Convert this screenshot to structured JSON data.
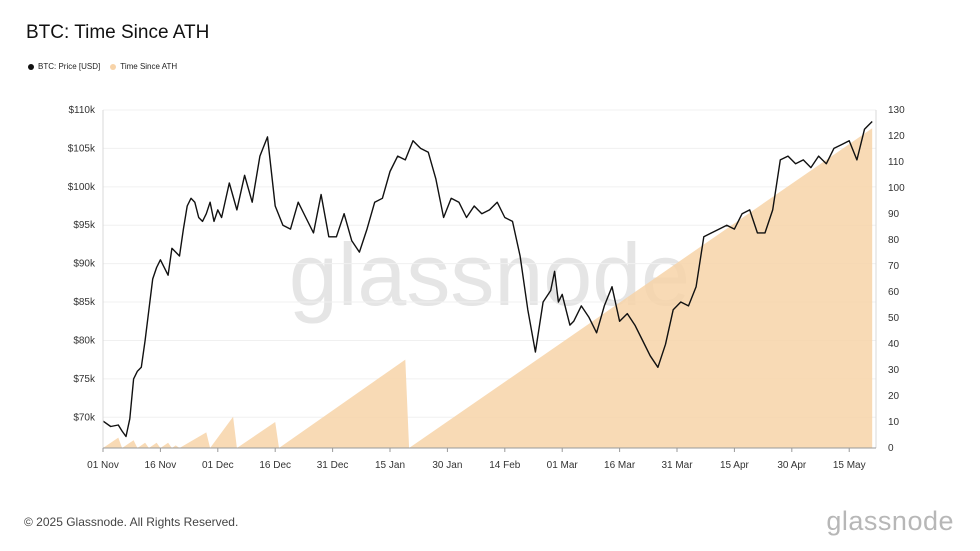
{
  "chart_data": {
    "type": "line",
    "title": "BTC: Time Since ATH",
    "xlabel": "",
    "ylabel": "",
    "x_ticks": [
      "01 Nov",
      "16 Nov",
      "01 Dec",
      "16 Dec",
      "31 Dec",
      "15 Jan",
      "30 Jan",
      "14 Feb",
      "01 Mar",
      "16 Mar",
      "31 Mar",
      "15 Apr",
      "30 Apr",
      "15 May"
    ],
    "y_left_ticks": [
      "$70k",
      "$75k",
      "$80k",
      "$85k",
      "$90k",
      "$95k",
      "$100k",
      "$105k",
      "$110k"
    ],
    "y_right_ticks": [
      "0",
      "10",
      "20",
      "30",
      "40",
      "50",
      "60",
      "70",
      "80",
      "90",
      "100",
      "110",
      "120",
      "130"
    ],
    "ylim_left": [
      66000,
      110000
    ],
    "ylim_right": [
      0,
      130
    ],
    "xlim": [
      0,
      202
    ],
    "legend_position": "top-left",
    "series": [
      {
        "name": "BTC: Price [USD]",
        "color": "#111111",
        "axis": "left",
        "x": [
          0,
          2,
          4,
          5,
          6,
          7,
          8,
          9,
          10,
          11,
          12,
          13,
          14,
          15,
          17,
          18,
          20,
          21,
          22,
          23,
          24,
          25,
          26,
          27,
          28,
          29,
          30,
          31,
          33,
          35,
          37,
          39,
          41,
          43,
          45,
          47,
          49,
          51,
          53,
          55,
          57,
          59,
          61,
          63,
          65,
          67,
          69,
          71,
          73,
          75,
          77,
          79,
          81,
          83,
          85,
          87,
          89,
          91,
          93,
          95,
          97,
          99,
          101,
          103,
          105,
          107,
          109,
          111,
          113,
          115,
          117,
          118,
          119,
          120,
          121,
          122,
          123,
          125,
          127,
          129,
          131,
          133,
          135,
          137,
          139,
          141,
          143,
          145,
          147,
          149,
          151,
          153,
          155,
          157,
          159,
          161,
          163,
          165,
          167,
          169,
          171,
          173,
          175,
          177,
          179,
          181,
          183,
          185,
          187,
          189,
          191,
          193,
          195,
          197,
          199,
          200,
          201
        ],
        "values": [
          69500,
          68800,
          69000,
          68200,
          67500,
          69800,
          75000,
          76000,
          76500,
          80000,
          84000,
          88000,
          89500,
          90500,
          88500,
          92000,
          91000,
          94500,
          97500,
          98500,
          98000,
          96000,
          95500,
          96500,
          98000,
          95500,
          97000,
          96000,
          100500,
          97000,
          101500,
          98000,
          104000,
          106500,
          97500,
          95000,
          94500,
          98000,
          96000,
          94000,
          99000,
          93500,
          93500,
          96500,
          93000,
          91500,
          94500,
          98000,
          98500,
          102000,
          104000,
          103500,
          106000,
          105000,
          104500,
          101000,
          96000,
          98500,
          98000,
          96000,
          97500,
          96500,
          97000,
          98000,
          96000,
          95500,
          91000,
          84000,
          78500,
          85000,
          86500,
          89000,
          85000,
          86000,
          84000,
          82000,
          82500,
          84500,
          83000,
          81000,
          84500,
          87000,
          82500,
          83500,
          82000,
          80000,
          78000,
          76500,
          79500,
          84000,
          85000,
          84500,
          87000,
          93500,
          94000,
          94500,
          95000,
          94500,
          96500,
          97000,
          94000,
          94000,
          97000,
          103500,
          104000,
          103000,
          103500,
          102500,
          104000,
          103000,
          105000,
          105500,
          106000,
          103500,
          107500,
          108000,
          108500
        ]
      },
      {
        "name": "Time Since ATH",
        "color": "#f7d3a8",
        "axis": "right",
        "x": [
          0,
          4,
          5,
          8,
          9,
          11,
          12,
          14,
          15,
          17,
          18,
          19,
          20,
          27,
          28,
          34,
          35,
          45,
          46,
          79,
          80,
          201
        ],
        "values": [
          0,
          4,
          0,
          3,
          0,
          2,
          0,
          2,
          0,
          2,
          0,
          1,
          0,
          6,
          0,
          12,
          0,
          10,
          0,
          34,
          0,
          123
        ]
      }
    ],
    "watermark": "glassnode"
  },
  "footer": {
    "copyright": "© 2025 Glassnode. All Rights Reserved.",
    "brand": "glassnode"
  }
}
